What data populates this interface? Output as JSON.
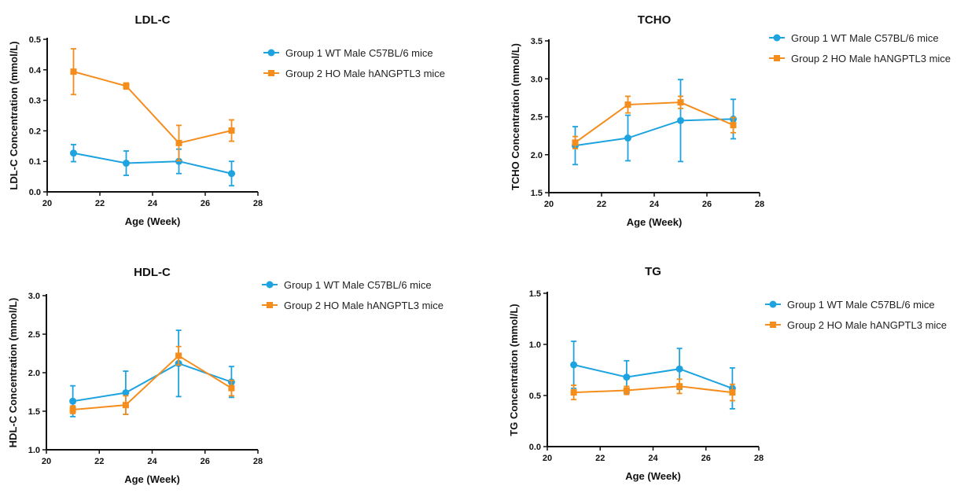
{
  "colors": {
    "group1": "#1ca3e0",
    "group2": "#f58d1d",
    "axis": "#111111"
  },
  "legend": {
    "group1": "Group 1 WT Male C57BL/6 mice",
    "group2": "Group 2 HO Male hANGPTL3 mice"
  },
  "chart_data": [
    {
      "type": "line",
      "title": "LDL-C",
      "xlabel": "Age (Week)",
      "ylabel": "LDL-C Concentration (mmol/L)",
      "xlim": [
        20,
        28
      ],
      "ylim": [
        0.0,
        0.5
      ],
      "xticks": [
        20,
        22,
        24,
        26,
        28
      ],
      "yticks": [
        "0.0",
        "0.1",
        "0.2",
        "0.3",
        "0.4",
        "0.5"
      ],
      "legend_position": "top-right",
      "x": [
        21,
        23,
        25,
        27
      ],
      "series": [
        {
          "name": "Group 1 WT Male C57BL/6 mice",
          "marker": "circle",
          "values": [
            0.127,
            0.094,
            0.1,
            0.06
          ],
          "errors": [
            0.028,
            0.04,
            0.04,
            0.04
          ]
        },
        {
          "name": "Group 2 HO Male hANGPTL3 mice",
          "marker": "square",
          "values": [
            0.394,
            0.347,
            0.16,
            0.201
          ],
          "errors": [
            0.075,
            0.01,
            0.058,
            0.035
          ]
        }
      ]
    },
    {
      "type": "line",
      "title": "TCHO",
      "xlabel": "Age (Week)",
      "ylabel": "TCHO Concentration (mmol/L)",
      "xlim": [
        20,
        28
      ],
      "ylim": [
        1.5,
        3.5
      ],
      "xticks": [
        20,
        22,
        24,
        26,
        28
      ],
      "yticks": [
        "1.5",
        "2.0",
        "2.5",
        "3.0",
        "3.5"
      ],
      "legend_position": "top-right",
      "x": [
        21,
        23,
        25,
        27
      ],
      "series": [
        {
          "name": "Group 1 WT Male C57BL/6 mice",
          "marker": "circle",
          "values": [
            2.12,
            2.22,
            2.45,
            2.47
          ],
          "errors": [
            0.25,
            0.3,
            0.54,
            0.26
          ]
        },
        {
          "name": "Group 2 HO Male hANGPTL3 mice",
          "marker": "square",
          "values": [
            2.16,
            2.66,
            2.69,
            2.39
          ],
          "errors": [
            0.08,
            0.11,
            0.08,
            0.1
          ]
        }
      ]
    },
    {
      "type": "line",
      "title": "HDL-C",
      "xlabel": "Age (Week)",
      "ylabel": "HDL-C Concentration (mmol/L)",
      "xlim": [
        20,
        28
      ],
      "ylim": [
        1.0,
        3.0
      ],
      "xticks": [
        20,
        22,
        24,
        26,
        28
      ],
      "yticks": [
        "1.0",
        "1.5",
        "2.0",
        "2.5",
        "3.0"
      ],
      "legend_position": "top-right",
      "x": [
        21,
        23,
        25,
        27
      ],
      "series": [
        {
          "name": "Group 1 WT Male C57BL/6 mice",
          "marker": "circle",
          "values": [
            1.63,
            1.74,
            2.12,
            1.88
          ],
          "errors": [
            0.2,
            0.28,
            0.43,
            0.2
          ]
        },
        {
          "name": "Group 2 HO Male hANGPTL3 mice",
          "marker": "square",
          "values": [
            1.52,
            1.58,
            2.22,
            1.8
          ],
          "errors": [
            0.05,
            0.12,
            0.12,
            0.1
          ]
        }
      ]
    },
    {
      "type": "line",
      "title": "TG",
      "xlabel": "Age (Week)",
      "ylabel": "TG Concentration (mmol/L)",
      "xlim": [
        20,
        28
      ],
      "ylim": [
        0.0,
        1.5
      ],
      "xticks": [
        20,
        22,
        24,
        26,
        28
      ],
      "yticks": [
        "0.0",
        "0.5",
        "1.0",
        "1.5"
      ],
      "legend_position": "top-right",
      "x": [
        21,
        23,
        25,
        27
      ],
      "series": [
        {
          "name": "Group 1 WT Male C57BL/6 mice",
          "marker": "circle",
          "values": [
            0.8,
            0.68,
            0.76,
            0.57
          ],
          "errors": [
            0.23,
            0.16,
            0.2,
            0.2
          ]
        },
        {
          "name": "Group 2 HO Male hANGPTL3 mice",
          "marker": "square",
          "values": [
            0.53,
            0.55,
            0.59,
            0.53
          ],
          "errors": [
            0.07,
            0.04,
            0.07,
            0.08
          ]
        }
      ]
    }
  ]
}
